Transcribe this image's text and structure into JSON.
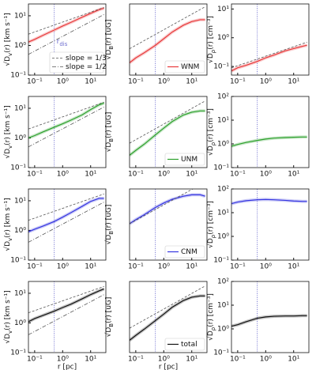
{
  "chart_data": [
    {
      "type": "line",
      "log_x": true,
      "log_y": true,
      "xlim": [
        0.06,
        35
      ],
      "ylim": [
        0.1,
        25
      ],
      "xticks": [
        {
          "value": 0.1,
          "label": "10⁻¹"
        },
        {
          "value": 1,
          "label": "10⁰"
        },
        {
          "value": 10,
          "label": "10¹"
        }
      ],
      "yticks": [
        {
          "value": 0.1,
          "label": "10⁻¹"
        },
        {
          "value": 1,
          "label": "10⁰"
        },
        {
          "value": 10,
          "label": "10¹"
        }
      ],
      "ylabel": [
        "√D",
        "v",
        "(r) [km s⁻¹]"
      ],
      "vline": 0.5,
      "vline_color": "#6f6fd0",
      "annotation": {
        "text": "r",
        "subscript": "dis"
      },
      "legend": "lower right",
      "x": [
        0.06,
        0.1,
        0.2,
        0.5,
        1,
        2,
        5,
        10,
        20,
        30
      ],
      "series": [
        {
          "color": "#e8393a",
          "values": [
            1.3,
            1.6,
            2.2,
            3.3,
            4.5,
            6,
            9,
            12,
            16,
            18
          ]
        },
        {
          "name": "slope = 1/3",
          "color": "#555555",
          "dash": "dashed",
          "x": [
            0.06,
            30
          ],
          "values": [
            2.4,
            19
          ]
        },
        {
          "name": "slope = 1/2",
          "color": "#555555",
          "dash": "dashdot",
          "x": [
            0.06,
            30
          ],
          "values": [
            0.5,
            11
          ]
        }
      ]
    },
    {
      "type": "line",
      "log_x": true,
      "log_y": true,
      "xlim": [
        0.06,
        35
      ],
      "ylim": [
        0.3,
        10
      ],
      "xticks": [
        {
          "value": 0.1,
          "label": "10⁻¹"
        },
        {
          "value": 1,
          "label": "10⁰"
        },
        {
          "value": 10,
          "label": "10¹"
        }
      ],
      "yticks": [],
      "ylabel": [
        "√D",
        "B",
        "(r) [uG]"
      ],
      "vline": 0.5,
      "vline_color": "#6f6fd0",
      "legend": "lower right",
      "x": [
        0.06,
        0.1,
        0.2,
        0.5,
        1,
        2,
        5,
        10,
        20,
        30
      ],
      "series": [
        {
          "name": "WNM",
          "color": "#e8393a",
          "values": [
            0.55,
            0.7,
            0.9,
            1.3,
            1.8,
            2.5,
            3.5,
            4.2,
            4.6,
            4.6
          ]
        },
        {
          "color": "#555555",
          "dash": "dashed",
          "x": [
            0.06,
            30
          ],
          "values": [
            1.1,
            8.7
          ]
        }
      ]
    },
    {
      "type": "line",
      "log_x": true,
      "log_y": true,
      "xlim": [
        0.06,
        35
      ],
      "ylim": [
        0.05,
        15
      ],
      "xticks": [
        {
          "value": 0.1,
          "label": "10⁻¹"
        },
        {
          "value": 1,
          "label": "10⁰"
        },
        {
          "value": 10,
          "label": "10¹"
        }
      ],
      "yticks": [
        {
          "value": 0.1,
          "label": "10⁻¹"
        },
        {
          "value": 1,
          "label": "10⁰"
        },
        {
          "value": 10,
          "label": "10¹"
        }
      ],
      "ylabel": [
        "√D",
        "ρ",
        "(r) [cm⁻³]"
      ],
      "vline": 0.5,
      "vline_color": "#6f6fd0",
      "x": [
        0.06,
        0.1,
        0.2,
        0.5,
        1,
        2,
        5,
        10,
        20,
        30
      ],
      "series": [
        {
          "color": "#e8393a",
          "values": [
            0.07,
            0.09,
            0.11,
            0.15,
            0.2,
            0.25,
            0.35,
            0.42,
            0.5,
            0.55
          ]
        },
        {
          "color": "#555555",
          "dash": "dashed",
          "x": [
            0.06,
            30
          ],
          "values": [
            0.09,
            0.7
          ]
        }
      ]
    },
    {
      "type": "line",
      "log_x": true,
      "log_y": true,
      "xlim": [
        0.06,
        35
      ],
      "ylim": [
        0.1,
        25
      ],
      "xticks": [
        {
          "value": 0.1,
          "label": "10⁻¹"
        },
        {
          "value": 1,
          "label": "10⁰"
        },
        {
          "value": 10,
          "label": "10¹"
        }
      ],
      "yticks": [
        {
          "value": 0.1,
          "label": "10⁻¹"
        },
        {
          "value": 1,
          "label": "10⁰"
        },
        {
          "value": 10,
          "label": "10¹"
        }
      ],
      "ylabel": [
        "√D",
        "v",
        "(r) [km s⁻¹]"
      ],
      "vline": 0.5,
      "vline_color": "#6f6fd0",
      "x": [
        0.06,
        0.1,
        0.2,
        0.5,
        1,
        2,
        5,
        10,
        20,
        30
      ],
      "series": [
        {
          "color": "#2ca02c",
          "values": [
            1.0,
            1.2,
            1.6,
            2.3,
            3,
            4,
            6,
            9,
            13,
            15
          ]
        },
        {
          "color": "#555555",
          "dash": "dashed",
          "x": [
            0.06,
            30
          ],
          "values": [
            2.0,
            16
          ]
        },
        {
          "color": "#555555",
          "dash": "dashdot",
          "x": [
            0.06,
            30
          ],
          "values": [
            0.5,
            11
          ]
        }
      ]
    },
    {
      "type": "line",
      "log_x": true,
      "log_y": true,
      "xlim": [
        0.06,
        35
      ],
      "ylim": [
        0.3,
        10
      ],
      "xticks": [
        {
          "value": 0.1,
          "label": "10⁻¹"
        },
        {
          "value": 1,
          "label": "10⁰"
        },
        {
          "value": 10,
          "label": "10¹"
        }
      ],
      "yticks": [],
      "ylabel": [
        "√D",
        "B",
        "(r) [uG]"
      ],
      "vline": 0.5,
      "vline_color": "#6f6fd0",
      "legend": "lower right",
      "x": [
        0.06,
        0.1,
        0.2,
        0.5,
        1,
        2,
        5,
        10,
        20,
        30
      ],
      "series": [
        {
          "name": "UNM",
          "color": "#2ca02c",
          "values": [
            0.55,
            0.7,
            0.95,
            1.5,
            2.1,
            2.9,
            4,
            4.6,
            4.9,
            4.9
          ]
        },
        {
          "color": "#555555",
          "dash": "dashed",
          "x": [
            0.06,
            30
          ],
          "values": [
            1.0,
            8
          ]
        }
      ]
    },
    {
      "type": "line",
      "log_x": true,
      "log_y": true,
      "xlim": [
        0.06,
        35
      ],
      "ylim": [
        0.1,
        100
      ],
      "xticks": [
        {
          "value": 0.1,
          "label": "10⁻¹"
        },
        {
          "value": 1,
          "label": "10⁰"
        },
        {
          "value": 10,
          "label": "10¹"
        }
      ],
      "yticks": [
        {
          "value": 0.1,
          "label": "10⁻¹"
        },
        {
          "value": 1,
          "label": "10⁰"
        },
        {
          "value": 10,
          "label": "10¹"
        },
        {
          "value": 100,
          "label": "10²"
        }
      ],
      "ylabel": [
        "√D",
        "ρ",
        "(r) [cm⁻³]"
      ],
      "vline": 0.5,
      "vline_color": "#6f6fd0",
      "x": [
        0.06,
        0.1,
        0.2,
        0.5,
        1,
        2,
        5,
        10,
        20,
        30
      ],
      "series": [
        {
          "color": "#2ca02c",
          "values": [
            0.8,
            0.95,
            1.15,
            1.4,
            1.6,
            1.75,
            1.85,
            1.9,
            1.95,
            1.95
          ]
        }
      ]
    },
    {
      "type": "line",
      "log_x": true,
      "log_y": true,
      "xlim": [
        0.06,
        35
      ],
      "ylim": [
        0.1,
        25
      ],
      "xticks": [
        {
          "value": 0.1,
          "label": "10⁻¹"
        },
        {
          "value": 1,
          "label": "10⁰"
        },
        {
          "value": 10,
          "label": "10¹"
        }
      ],
      "yticks": [
        {
          "value": 0.1,
          "label": "10⁻¹"
        },
        {
          "value": 1,
          "label": "10⁰"
        },
        {
          "value": 10,
          "label": "10¹"
        }
      ],
      "ylabel": [
        "√D",
        "v",
        "(r) [km s⁻¹]"
      ],
      "vline": 0.5,
      "vline_color": "#6f6fd0",
      "x": [
        0.06,
        0.1,
        0.2,
        0.5,
        1,
        2,
        5,
        10,
        20,
        30
      ],
      "series": [
        {
          "color": "#3535e0",
          "values": [
            0.9,
            1.1,
            1.4,
            2,
            2.8,
            4,
            6.5,
            9.5,
            12,
            12
          ]
        },
        {
          "color": "#555555",
          "dash": "dashed",
          "x": [
            0.06,
            30
          ],
          "values": [
            2.2,
            17
          ]
        },
        {
          "color": "#555555",
          "dash": "dashdot",
          "x": [
            0.06,
            30
          ],
          "values": [
            0.4,
            9
          ]
        }
      ]
    },
    {
      "type": "line",
      "log_x": true,
      "log_y": true,
      "xlim": [
        0.06,
        35
      ],
      "ylim": [
        0.3,
        10
      ],
      "xticks": [
        {
          "value": 0.1,
          "label": "10⁻¹"
        },
        {
          "value": 1,
          "label": "10⁰"
        },
        {
          "value": 10,
          "label": "10¹"
        }
      ],
      "yticks": [],
      "ylabel": [
        "√D",
        "B",
        "(r) [uG]"
      ],
      "vline": 0.5,
      "vline_color": "#6f6fd0",
      "legend": "lower right",
      "x": [
        0.06,
        0.1,
        0.2,
        0.5,
        1,
        2,
        5,
        10,
        20,
        30
      ],
      "series": [
        {
          "name": "CNM",
          "color": "#3535e0",
          "values": [
            1.8,
            2.2,
            2.8,
            4,
            5,
            6,
            7,
            7.5,
            7.5,
            7
          ]
        },
        {
          "color": "#555555",
          "dash": "dashed",
          "x": [
            0.06,
            30
          ],
          "values": [
            1.8,
            14
          ]
        }
      ]
    },
    {
      "type": "line",
      "log_x": true,
      "log_y": true,
      "xlim": [
        0.06,
        35
      ],
      "ylim": [
        0.1,
        100
      ],
      "xticks": [
        {
          "value": 0.1,
          "label": "10⁻¹"
        },
        {
          "value": 1,
          "label": "10⁰"
        },
        {
          "value": 10,
          "label": "10¹"
        }
      ],
      "yticks": [
        {
          "value": 0.1,
          "label": "10⁻¹"
        },
        {
          "value": 1,
          "label": "10⁰"
        },
        {
          "value": 10,
          "label": "10¹"
        },
        {
          "value": 100,
          "label": "10²"
        }
      ],
      "ylabel": [
        "√D",
        "ρ",
        "(r) [cm⁻³]"
      ],
      "vline": 0.5,
      "vline_color": "#6f6fd0",
      "x": [
        0.06,
        0.1,
        0.2,
        0.5,
        1,
        2,
        5,
        10,
        20,
        30
      ],
      "series": [
        {
          "color": "#3535e0",
          "values": [
            24,
            28,
            32,
            35,
            36,
            35,
            33,
            31,
            30,
            30
          ]
        }
      ]
    },
    {
      "type": "line",
      "log_x": true,
      "log_y": true,
      "xlim": [
        0.06,
        35
      ],
      "ylim": [
        0.1,
        25
      ],
      "xticks": [
        {
          "value": 0.1,
          "label": "10⁻¹"
        },
        {
          "value": 1,
          "label": "10⁰"
        },
        {
          "value": 10,
          "label": "10¹"
        }
      ],
      "yticks": [
        {
          "value": 0.1,
          "label": "10⁻¹"
        },
        {
          "value": 1,
          "label": "10⁰"
        },
        {
          "value": 10,
          "label": "10¹"
        }
      ],
      "ylabel": [
        "√D",
        "v",
        "(r) [km s⁻¹]"
      ],
      "xlabel": "r [pc]",
      "vline": 0.5,
      "vline_color": "#6f6fd0",
      "x": [
        0.06,
        0.1,
        0.2,
        0.5,
        1,
        2,
        5,
        10,
        20,
        30
      ],
      "series": [
        {
          "color": "#111111",
          "values": [
            1.1,
            1.4,
            1.8,
            2.5,
            3.3,
            4.3,
            6.5,
            9,
            12,
            14
          ]
        },
        {
          "color": "#555555",
          "dash": "dashed",
          "x": [
            0.06,
            30
          ],
          "values": [
            2.2,
            17
          ]
        },
        {
          "color": "#555555",
          "dash": "dashdot",
          "x": [
            0.06,
            30
          ],
          "values": [
            0.4,
            9
          ]
        }
      ]
    },
    {
      "type": "line",
      "log_x": true,
      "log_y": true,
      "xlim": [
        0.06,
        35
      ],
      "ylim": [
        0.3,
        10
      ],
      "xticks": [
        {
          "value": 0.1,
          "label": "10⁻¹"
        },
        {
          "value": 1,
          "label": "10⁰"
        },
        {
          "value": 10,
          "label": "10¹"
        }
      ],
      "yticks": [],
      "ylabel": [
        "√D",
        "B",
        "(r) [uG]"
      ],
      "xlabel": "r [pc]",
      "vline": 0.5,
      "vline_color": "#6f6fd0",
      "legend": "lower right",
      "x": [
        0.06,
        0.1,
        0.2,
        0.5,
        1,
        2,
        5,
        10,
        20,
        30
      ],
      "series": [
        {
          "name": "total",
          "color": "#111111",
          "values": [
            0.55,
            0.7,
            0.95,
            1.45,
            2,
            2.8,
            3.9,
            4.6,
            4.9,
            4.9
          ]
        },
        {
          "color": "#555555",
          "dash": "dashed",
          "x": [
            0.06,
            30
          ],
          "values": [
            1.0,
            8
          ]
        }
      ]
    },
    {
      "type": "line",
      "log_x": true,
      "log_y": true,
      "xlim": [
        0.06,
        35
      ],
      "ylim": [
        0.1,
        100
      ],
      "xticks": [
        {
          "value": 0.1,
          "label": "10⁻¹"
        },
        {
          "value": 1,
          "label": "10⁰"
        },
        {
          "value": 10,
          "label": "10¹"
        }
      ],
      "yticks": [
        {
          "value": 0.1,
          "label": "10⁻¹"
        },
        {
          "value": 1,
          "label": "10⁰"
        },
        {
          "value": 10,
          "label": "10¹"
        },
        {
          "value": 100,
          "label": "10²"
        }
      ],
      "ylabel": [
        "√D",
        "ρ",
        "(r) [cm⁻³]"
      ],
      "vline": 0.5,
      "vline_color": "#6f6fd0",
      "x": [
        0.06,
        0.1,
        0.2,
        0.5,
        1,
        2,
        5,
        10,
        20,
        30
      ],
      "series": [
        {
          "color": "#111111",
          "values": [
            1.3,
            1.5,
            2,
            2.8,
            3.2,
            3.4,
            3.5,
            3.5,
            3.6,
            3.6
          ]
        }
      ]
    }
  ]
}
